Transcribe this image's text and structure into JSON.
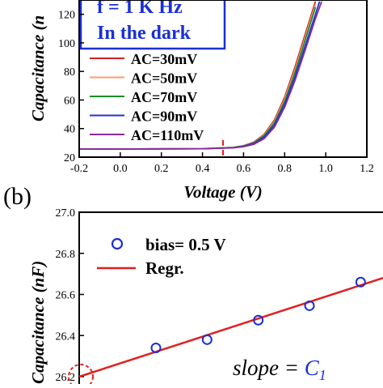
{
  "chart_data": [
    {
      "type": "line",
      "panel_label": "",
      "title_lines": [
        "f = 1 K Hz",
        "In the dark"
      ],
      "xlabel": "Voltage (V)",
      "ylabel": "Capacitance (nF)",
      "ylabel_visible": "Capacitance (n",
      "xlim": [
        -0.2,
        1.2
      ],
      "ylim": [
        20,
        130
      ],
      "x_ticks": [
        "-0.2",
        "0.0",
        "0.2",
        "0.4",
        "0.6",
        "0.8",
        "1.0",
        "1.2"
      ],
      "y_ticks": [
        "20",
        "40",
        "60",
        "80",
        "100",
        "120"
      ],
      "marker_x": 0.5,
      "series": [
        {
          "name": "AC=30mV",
          "color": "#d42020",
          "x": [
            -0.2,
            0.4,
            0.55,
            0.6,
            0.65,
            0.7,
            0.75,
            0.8,
            0.85,
            0.9,
            0.95
          ],
          "y": [
            25.6,
            25.9,
            26.8,
            28.0,
            30.5,
            36.0,
            46.0,
            62.0,
            83.0,
            106.0,
            129.0
          ]
        },
        {
          "name": "AC=50mV",
          "color": "#ff9a6a",
          "x": [
            -0.2,
            0.4,
            0.55,
            0.6,
            0.65,
            0.7,
            0.75,
            0.8,
            0.85,
            0.9,
            0.95
          ],
          "y": [
            25.6,
            25.9,
            26.8,
            28.0,
            30.2,
            35.5,
            45.0,
            60.5,
            81.0,
            104.0,
            127.0
          ]
        },
        {
          "name": "AC=70mV",
          "color": "#1a8f2a",
          "x": [
            -0.2,
            0.4,
            0.55,
            0.6,
            0.65,
            0.7,
            0.75,
            0.8,
            0.85,
            0.9,
            0.95
          ],
          "y": [
            25.6,
            25.9,
            26.7,
            27.8,
            30.0,
            35.0,
            44.0,
            59.0,
            79.0,
            102.0,
            125.0
          ]
        },
        {
          "name": "AC=90mV",
          "color": "#2233cc",
          "x": [
            -0.2,
            0.4,
            0.55,
            0.6,
            0.65,
            0.7,
            0.75,
            0.8,
            0.85,
            0.9,
            0.95,
            0.97
          ],
          "y": [
            25.6,
            25.9,
            26.6,
            27.6,
            29.6,
            34.0,
            42.5,
            57.0,
            76.0,
            98.0,
            120.0,
            129.0
          ]
        },
        {
          "name": "AC=110mV",
          "color": "#8a2a9a",
          "x": [
            -0.2,
            0.4,
            0.55,
            0.6,
            0.65,
            0.7,
            0.75,
            0.8,
            0.85,
            0.9,
            0.95,
            0.98
          ],
          "y": [
            25.6,
            25.9,
            26.5,
            27.3,
            29.0,
            33.0,
            41.0,
            55.0,
            73.5,
            95.0,
            117.0,
            129.0
          ]
        }
      ]
    },
    {
      "type": "scatter",
      "panel_label": "(b)",
      "ylabel": "Capacitance (nF)",
      "ylim": [
        26.2,
        27.0
      ],
      "y_ticks": [
        "26.2",
        "26.4",
        "26.6",
        "26.8",
        "27.0"
      ],
      "legend": [
        {
          "label": "bias= 0.5 V",
          "kind": "marker",
          "color": "#1a2fd6"
        },
        {
          "label": "Regr.",
          "kind": "line",
          "color": "#e02020"
        }
      ],
      "annotation": {
        "text": "slope = ",
        "symbol": "C",
        "subscript": "1"
      },
      "x_range": [
        0,
        12
      ],
      "points": [
        {
          "x": 3,
          "y": 26.34
        },
        {
          "x": 5,
          "y": 26.38
        },
        {
          "x": 7,
          "y": 26.475
        },
        {
          "x": 9,
          "y": 26.545
        },
        {
          "x": 11,
          "y": 26.66
        }
      ],
      "regression": {
        "x": [
          0,
          12
        ],
        "y": [
          26.2,
          26.685
        ]
      },
      "intercept_circle": {
        "x": 0,
        "y": 26.2
      }
    }
  ]
}
